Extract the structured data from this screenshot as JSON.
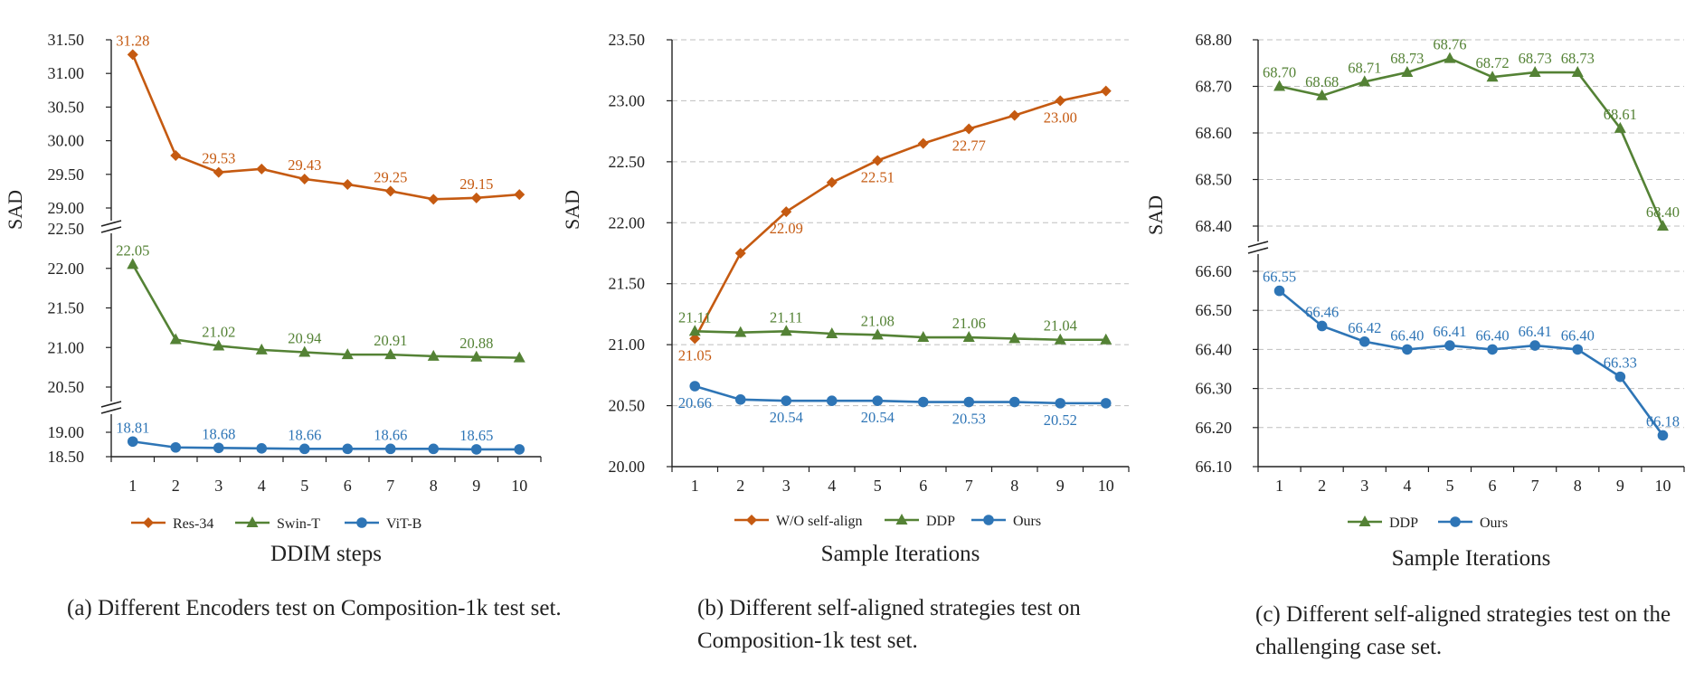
{
  "colors": {
    "orange": "#C55A11",
    "green": "#548235",
    "blue": "#2E75B6",
    "axis": "#222222",
    "grid": "#BFBFBF"
  },
  "chart_data": [
    {
      "type": "line",
      "ylabel": "SAD",
      "xlabel": "DDIM steps",
      "caption": "(a) Different Encoders test on Composition-1k test set.",
      "categories": [
        "1",
        "2",
        "3",
        "4",
        "5",
        "6",
        "7",
        "8",
        "9",
        "10"
      ],
      "broken_axis": true,
      "segments": [
        {
          "ylim": [
            29.0,
            31.5
          ],
          "ticks": [
            "29.00",
            "29.50",
            "30.00",
            "30.50",
            "31.00",
            "31.50"
          ]
        },
        {
          "ylim": [
            20.5,
            22.5
          ],
          "ticks": [
            "20.50",
            "21.00",
            "21.50",
            "22.00",
            "22.50"
          ]
        },
        {
          "ylim": [
            18.5,
            19.0
          ],
          "ticks": [
            "18.50",
            "19.00"
          ]
        }
      ],
      "legend": [
        "Res-34",
        "Swin-T",
        "ViT-B"
      ],
      "series": [
        {
          "name": "Res-34",
          "segment": 0,
          "marker": "diamond",
          "color": "#C55A11",
          "values": [
            31.28,
            29.78,
            29.53,
            29.58,
            29.43,
            29.35,
            29.25,
            29.13,
            29.15,
            29.2
          ],
          "labels": [
            {
              "i": 0,
              "text": "31.28",
              "pos": "above"
            },
            {
              "i": 2,
              "text": "29.53",
              "pos": "above"
            },
            {
              "i": 4,
              "text": "29.43",
              "pos": "above"
            },
            {
              "i": 6,
              "text": "29.25",
              "pos": "above"
            },
            {
              "i": 8,
              "text": "29.15",
              "pos": "above"
            }
          ]
        },
        {
          "name": "Swin-T",
          "segment": 1,
          "marker": "triangle",
          "color": "#548235",
          "values": [
            22.05,
            21.1,
            21.02,
            20.97,
            20.94,
            20.91,
            20.91,
            20.89,
            20.88,
            20.87
          ],
          "labels": [
            {
              "i": 0,
              "text": "22.05",
              "pos": "above"
            },
            {
              "i": 2,
              "text": "21.02",
              "pos": "above"
            },
            {
              "i": 4,
              "text": "20.94",
              "pos": "above"
            },
            {
              "i": 6,
              "text": "20.91",
              "pos": "above"
            },
            {
              "i": 8,
              "text": "20.88",
              "pos": "above"
            }
          ]
        },
        {
          "name": "ViT-B",
          "segment": 2,
          "marker": "circle",
          "color": "#2E75B6",
          "values": [
            18.81,
            18.69,
            18.68,
            18.67,
            18.66,
            18.66,
            18.66,
            18.66,
            18.65,
            18.65
          ],
          "labels": [
            {
              "i": 0,
              "text": "18.81",
              "pos": "above"
            },
            {
              "i": 2,
              "text": "18.68",
              "pos": "above"
            },
            {
              "i": 4,
              "text": "18.66",
              "pos": "above"
            },
            {
              "i": 6,
              "text": "18.66",
              "pos": "above"
            },
            {
              "i": 8,
              "text": "18.65",
              "pos": "above"
            }
          ]
        }
      ]
    },
    {
      "type": "line",
      "ylabel": "SAD",
      "xlabel": "Sample Iterations",
      "caption": "(b) Different self-aligned strategies test on Composition-1k test set.",
      "categories": [
        "1",
        "2",
        "3",
        "4",
        "5",
        "6",
        "7",
        "8",
        "9",
        "10"
      ],
      "broken_axis": false,
      "segments": [
        {
          "ylim": [
            20.0,
            23.5
          ],
          "ticks": [
            "20.00",
            "20.50",
            "21.00",
            "21.50",
            "22.00",
            "22.50",
            "23.00",
            "23.50"
          ]
        }
      ],
      "legend": [
        "W/O self-align",
        "DDP",
        "Ours"
      ],
      "series": [
        {
          "name": "W/O self-align",
          "segment": 0,
          "marker": "diamond",
          "color": "#C55A11",
          "values": [
            21.05,
            21.75,
            22.09,
            22.33,
            22.51,
            22.65,
            22.77,
            22.88,
            23.0,
            23.08
          ],
          "labels": [
            {
              "i": 0,
              "text": "21.05",
              "pos": "below"
            },
            {
              "i": 2,
              "text": "22.09",
              "pos": "below"
            },
            {
              "i": 4,
              "text": "22.51",
              "pos": "below"
            },
            {
              "i": 6,
              "text": "22.77",
              "pos": "below"
            },
            {
              "i": 8,
              "text": "23.00",
              "pos": "below"
            }
          ]
        },
        {
          "name": "DDP",
          "segment": 0,
          "marker": "triangle",
          "color": "#548235",
          "values": [
            21.11,
            21.1,
            21.11,
            21.09,
            21.08,
            21.06,
            21.06,
            21.05,
            21.04,
            21.04
          ],
          "labels": [
            {
              "i": 0,
              "text": "21.11",
              "pos": "above"
            },
            {
              "i": 2,
              "text": "21.11",
              "pos": "above"
            },
            {
              "i": 4,
              "text": "21.08",
              "pos": "above"
            },
            {
              "i": 6,
              "text": "21.06",
              "pos": "above"
            },
            {
              "i": 8,
              "text": "21.04",
              "pos": "above"
            }
          ]
        },
        {
          "name": "Ours",
          "segment": 0,
          "marker": "circle",
          "color": "#2E75B6",
          "values": [
            20.66,
            20.55,
            20.54,
            20.54,
            20.54,
            20.53,
            20.53,
            20.53,
            20.52,
            20.52
          ],
          "labels": [
            {
              "i": 0,
              "text": "20.66",
              "pos": "below"
            },
            {
              "i": 2,
              "text": "20.54",
              "pos": "below"
            },
            {
              "i": 4,
              "text": "20.54",
              "pos": "below"
            },
            {
              "i": 6,
              "text": "20.53",
              "pos": "below"
            },
            {
              "i": 8,
              "text": "20.52",
              "pos": "below"
            }
          ]
        }
      ]
    },
    {
      "type": "line",
      "ylabel": "SAD",
      "xlabel": "Sample Iterations",
      "caption": "(c) Different self-aligned strategies test on the challenging case set.",
      "categories": [
        "1",
        "2",
        "3",
        "4",
        "5",
        "6",
        "7",
        "8",
        "9",
        "10"
      ],
      "broken_axis": true,
      "segments": [
        {
          "ylim": [
            68.4,
            68.8
          ],
          "ticks": [
            "68.40",
            "68.50",
            "68.60",
            "68.70",
            "68.80"
          ]
        },
        {
          "ylim": [
            66.1,
            66.6
          ],
          "ticks": [
            "66.10",
            "66.20",
            "66.30",
            "66.40",
            "66.50",
            "66.60"
          ]
        }
      ],
      "legend": [
        "DDP",
        "Ours"
      ],
      "series": [
        {
          "name": "DDP",
          "segment": 0,
          "marker": "triangle",
          "color": "#548235",
          "values": [
            68.7,
            68.68,
            68.71,
            68.73,
            68.76,
            68.72,
            68.73,
            68.73,
            68.61,
            68.4
          ],
          "labels": [
            {
              "i": 0,
              "text": "68.70",
              "pos": "above"
            },
            {
              "i": 1,
              "text": "68.68",
              "pos": "above"
            },
            {
              "i": 2,
              "text": "68.71",
              "pos": "above"
            },
            {
              "i": 3,
              "text": "68.73",
              "pos": "above"
            },
            {
              "i": 4,
              "text": "68.76",
              "pos": "above"
            },
            {
              "i": 5,
              "text": "68.72",
              "pos": "above"
            },
            {
              "i": 6,
              "text": "68.73",
              "pos": "above"
            },
            {
              "i": 7,
              "text": "68.73",
              "pos": "above"
            },
            {
              "i": 8,
              "text": "68.61",
              "pos": "above"
            },
            {
              "i": 9,
              "text": "68.40",
              "pos": "above"
            }
          ]
        },
        {
          "name": "Ours",
          "segment": 1,
          "marker": "circle",
          "color": "#2E75B6",
          "values": [
            66.55,
            66.46,
            66.42,
            66.4,
            66.41,
            66.4,
            66.41,
            66.4,
            66.33,
            66.18
          ],
          "labels": [
            {
              "i": 0,
              "text": "66.55",
              "pos": "above"
            },
            {
              "i": 1,
              "text": "66.46",
              "pos": "above"
            },
            {
              "i": 2,
              "text": "66.42",
              "pos": "above"
            },
            {
              "i": 3,
              "text": "66.40",
              "pos": "above"
            },
            {
              "i": 4,
              "text": "66.41",
              "pos": "above"
            },
            {
              "i": 5,
              "text": "66.40",
              "pos": "above"
            },
            {
              "i": 6,
              "text": "66.41",
              "pos": "above"
            },
            {
              "i": 7,
              "text": "66.40",
              "pos": "above"
            },
            {
              "i": 8,
              "text": "66.33",
              "pos": "above"
            },
            {
              "i": 9,
              "text": "66.18",
              "pos": "above"
            }
          ]
        }
      ]
    }
  ]
}
